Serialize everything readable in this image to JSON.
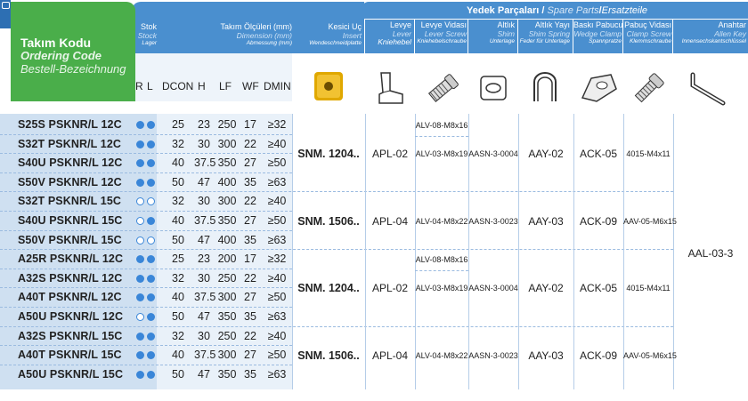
{
  "header": {
    "ordering_code_tr": "Takım Kodu",
    "ordering_code_en": "Ordering Code",
    "ordering_code_de": "Bestell-Bezeichnung",
    "stock_tr": "Stok",
    "stock_en": "Stock",
    "stock_de": "Lager",
    "dims_tr": "Takım Ölçüleri (mm)",
    "dims_en": "Dimension (mm)",
    "dims_de": "Abmessung (mm)",
    "insert_tr": "Kesici Uç",
    "insert_en": "Insert",
    "insert_de": "Wendeschneidplatte",
    "spare_tr": "Yedek Parçaları /",
    "spare_en": "Spare Parts",
    "spare_sep": " / ",
    "spare_de": "Ersatzteile"
  },
  "col_labels": [
    "R",
    "L",
    "DCON",
    "H",
    "LF",
    "WF",
    "DMIN"
  ],
  "parts_headers": [
    {
      "tr": "Levye",
      "en": "Lever",
      "de": "Kniehebel"
    },
    {
      "tr": "Levye Vidası",
      "en": "Lever Screw",
      "de": "Kniehebelschraube"
    },
    {
      "tr": "Altlık",
      "en": "Shim",
      "de": "Unterlage"
    },
    {
      "tr": "Altlık Yayı",
      "en": "Shim Spring",
      "de": "Feder für Unterlage"
    },
    {
      "tr": "Baskı Pabucu",
      "en": "Wedge Clamp",
      "de": "Spannpratze"
    },
    {
      "tr": "Pabuç Vidası",
      "en": "Clamp Screw",
      "de": "Klemmschraube"
    },
    {
      "tr": "Anahtar",
      "en": "Allen Key",
      "de": "Innensechskantschlüssel"
    }
  ],
  "rows": [
    {
      "code": "S25S PSKNR/L 12C",
      "r": "filled",
      "l": "filled",
      "dcon": "25",
      "h": "23",
      "lf": "250",
      "wf": "17",
      "dmin": "≥32"
    },
    {
      "code": "S32T PSKNR/L 12C",
      "r": "filled",
      "l": "filled",
      "dcon": "32",
      "h": "30",
      "lf": "300",
      "wf": "22",
      "dmin": "≥40"
    },
    {
      "code": "S40U PSKNR/L 12C",
      "r": "filled",
      "l": "filled",
      "dcon": "40",
      "h": "37.5",
      "lf": "350",
      "wf": "27",
      "dmin": "≥50"
    },
    {
      "code": "S50V PSKNR/L 12C",
      "r": "filled",
      "l": "filled",
      "dcon": "50",
      "h": "47",
      "lf": "400",
      "wf": "35",
      "dmin": "≥63"
    },
    {
      "code": "S32T PSKNR/L 15C",
      "r": "open",
      "l": "open",
      "dcon": "32",
      "h": "30",
      "lf": "300",
      "wf": "22",
      "dmin": "≥40"
    },
    {
      "code": "S40U PSKNR/L 15C",
      "r": "open",
      "l": "filled",
      "dcon": "40",
      "h": "37.5",
      "lf": "350",
      "wf": "27",
      "dmin": "≥50"
    },
    {
      "code": "S50V PSKNR/L 15C",
      "r": "open",
      "l": "open",
      "dcon": "50",
      "h": "47",
      "lf": "400",
      "wf": "35",
      "dmin": "≥63"
    },
    {
      "code": "A25R PSKNR/L 12C",
      "r": "filled",
      "l": "filled",
      "dcon": "25",
      "h": "23",
      "lf": "200",
      "wf": "17",
      "dmin": "≥32"
    },
    {
      "code": "A32S PSKNR/L 12C",
      "r": "filled",
      "l": "filled",
      "dcon": "32",
      "h": "30",
      "lf": "250",
      "wf": "22",
      "dmin": "≥40"
    },
    {
      "code": "A40T PSKNR/L 12C",
      "r": "filled",
      "l": "filled",
      "dcon": "40",
      "h": "37.5",
      "lf": "300",
      "wf": "27",
      "dmin": "≥50"
    },
    {
      "code": "A50U PSKNR/L 12C",
      "r": "open",
      "l": "filled",
      "dcon": "50",
      "h": "47",
      "lf": "350",
      "wf": "35",
      "dmin": "≥63"
    },
    {
      "code": "A32S PSKNR/L 15C",
      "r": "filled",
      "l": "filled",
      "dcon": "32",
      "h": "30",
      "lf": "250",
      "wf": "22",
      "dmin": "≥40"
    },
    {
      "code": "A40T PSKNR/L 15C",
      "r": "filled",
      "l": "filled",
      "dcon": "40",
      "h": "37.5",
      "lf": "300",
      "wf": "27",
      "dmin": "≥50"
    },
    {
      "code": "A50U PSKNR/L 15C",
      "r": "filled",
      "l": "filled",
      "dcon": "50",
      "h": "47",
      "lf": "350",
      "wf": "35",
      "dmin": "≥63"
    }
  ],
  "groups": [
    {
      "insert": "SNM. 1204..",
      "lever": "APL-02",
      "screw_a": "ALV-08-M8x16",
      "screw_b": "ALV-03-M8x19",
      "shim": "AASN-3-0004",
      "spring": "AAY-02",
      "clamp": "ACK-05",
      "clamp_screw": "4015-M4x11"
    },
    {
      "insert": "SNM. 1506..",
      "lever": "APL-04",
      "screw_b": "ALV-04-M8x22",
      "shim": "AASN-3-0023",
      "spring": "AAY-03",
      "clamp": "ACK-09",
      "clamp_screw": "AAV-05-M6x15"
    },
    {
      "insert": "SNM. 1204..",
      "lever": "APL-02",
      "screw_a": "ALV-08-M8x16",
      "screw_b": "ALV-03-M8x19",
      "shim": "AASN-3-0004",
      "spring": "AAY-02",
      "clamp": "ACK-05",
      "clamp_screw": "4015-M4x11"
    },
    {
      "insert": "SNM. 1506..",
      "lever": "APL-04",
      "screw_b": "ALV-04-M8x22",
      "shim": "AASN-3-0023",
      "spring": "AAY-03",
      "clamp": "ACK-09",
      "clamp_screw": "AAV-05-M6x15"
    }
  ],
  "allen_key": "AAL-03-3",
  "icons": [
    "insert-icon",
    "lever-icon",
    "lever-screw-icon",
    "shim-icon",
    "shim-spring-icon",
    "wedge-clamp-icon",
    "clamp-screw-icon",
    "allen-key-icon"
  ],
  "colors": {
    "blue": "#4a8fcf",
    "green": "#4aae4a",
    "row_bg": "#cfe0f1",
    "dot": "#3a86d8",
    "insert": "#e0a800"
  }
}
